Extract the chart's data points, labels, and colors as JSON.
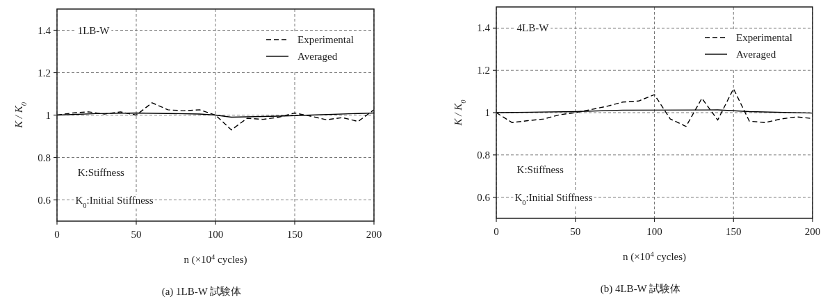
{
  "chart_data": [
    {
      "type": "line",
      "title": "(a)   1LB-W 試験体",
      "xlabel": "n (×10$^{4}$ cycles)",
      "ylabel": "K / K$_{0}$",
      "xlim": [
        0,
        200
      ],
      "xticks": [
        0,
        50,
        100,
        150,
        200
      ],
      "ylim": [
        0.5,
        1.5
      ],
      "yticks": [
        0.6,
        0.8,
        1,
        1.2,
        1.4
      ],
      "grid": true,
      "legend": "top right",
      "annotations": [
        "1LB-W",
        "K:Stiffness",
        "K$_{0}$:Initial Stiffness"
      ],
      "series": [
        {
          "name": "Experimental",
          "color": "#000000",
          "line_style": "dashed",
          "x": [
            0,
            10,
            20,
            30,
            40,
            50,
            60,
            70,
            80,
            90,
            100,
            110,
            120,
            130,
            140,
            150,
            160,
            170,
            180,
            190,
            200
          ],
          "values": [
            1.0,
            1.01,
            1.015,
            1.005,
            1.015,
            1.0,
            1.058,
            1.025,
            1.02,
            1.025,
            1.0,
            0.93,
            0.985,
            0.98,
            0.99,
            1.01,
            0.995,
            0.978,
            0.988,
            0.97,
            1.025
          ]
        },
        {
          "name": "Averaged",
          "color": "#000000",
          "line_style": "solid",
          "x": [
            0,
            25,
            50,
            90,
            100,
            110,
            140,
            160,
            200
          ],
          "values": [
            1.0,
            1.007,
            1.01,
            1.005,
            1.0,
            0.99,
            0.995,
            1.0,
            1.01
          ]
        }
      ]
    },
    {
      "type": "line",
      "title": "(b)   4LB-W 試験体",
      "xlabel": "n (×10$^{4}$ cycles)",
      "ylabel": "K / K$_{0}$",
      "xlim": [
        0,
        200
      ],
      "xticks": [
        0,
        50,
        100,
        150,
        200
      ],
      "ylim": [
        0.5,
        1.5
      ],
      "yticks": [
        0.6,
        0.8,
        1,
        1.2,
        1.4
      ],
      "grid": true,
      "legend": "top right",
      "annotations": [
        "4LB-W",
        "K:Stiffness",
        "K$_{0}$:Initial Stiffness"
      ],
      "series": [
        {
          "name": "Experimental",
          "color": "#000000",
          "line_style": "dashed",
          "x": [
            0,
            10,
            20,
            30,
            40,
            50,
            60,
            70,
            80,
            90,
            100,
            110,
            120,
            130,
            140,
            150,
            160,
            170,
            180,
            190,
            200
          ],
          "values": [
            1.0,
            0.953,
            0.962,
            0.97,
            0.99,
            1.0,
            1.015,
            1.03,
            1.05,
            1.055,
            1.085,
            0.97,
            0.935,
            1.068,
            0.965,
            1.113,
            0.96,
            0.953,
            0.97,
            0.98,
            0.972
          ]
        },
        {
          "name": "Averaged",
          "color": "#000000",
          "line_style": "solid",
          "x": [
            0,
            50,
            80,
            140,
            160,
            200
          ],
          "values": [
            1.0,
            1.005,
            1.012,
            1.013,
            1.005,
            0.998
          ]
        }
      ]
    }
  ]
}
